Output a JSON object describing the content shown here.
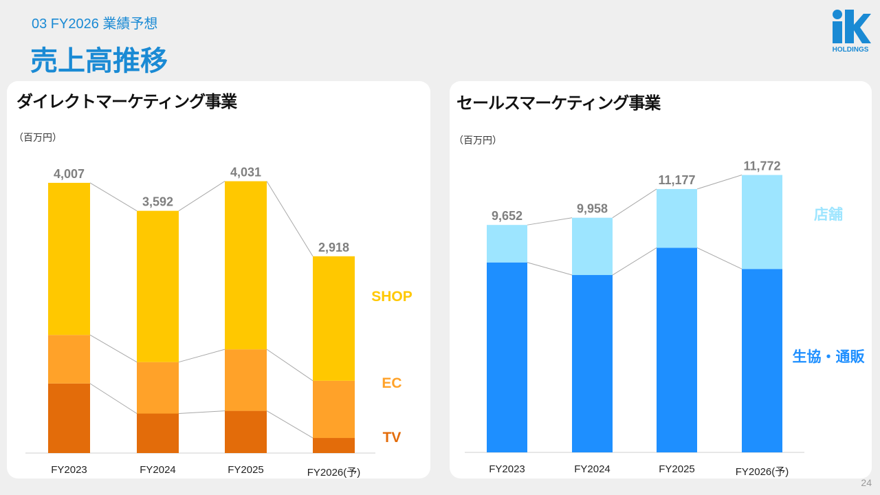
{
  "header": {
    "section": "03  FY2026 業績予想",
    "title": "売上高推移",
    "logo_text": "HOLDINGS"
  },
  "page_number": "24",
  "colors": {
    "accent": "#1a8ad4",
    "tv": "#e36c0a",
    "ec": "#ffa229",
    "shop": "#ffc800",
    "store": "#9de5ff",
    "coop": "#1e8fff"
  },
  "chart_data": [
    {
      "type": "bar",
      "stacked": true,
      "title": "ダイレクトマーケティング事業",
      "unit": "（百万円）",
      "categories": [
        "FY2023",
        "FY2024",
        "FY2025",
        "FY2026(予)"
      ],
      "series": [
        {
          "name": "TV",
          "values": [
            1031,
            586,
            626,
            224
          ]
        },
        {
          "name": "EC",
          "values": [
            720,
            763,
            912,
            848
          ]
        },
        {
          "name": "SHOP",
          "values": [
            2256,
            2243,
            2493,
            1846
          ]
        }
      ],
      "totals": [
        "4,007",
        "3,592",
        "4,031",
        "2,918"
      ],
      "ylim": [
        0,
        4200
      ],
      "legend_position": "right"
    },
    {
      "type": "bar",
      "stacked": true,
      "title": "セールスマーケティング事業",
      "unit": "（百万円）",
      "categories": [
        "FY2023",
        "FY2024",
        "FY2025",
        "FY2026(予)"
      ],
      "series": [
        {
          "name": "生協・通販",
          "values": [
            8061,
            7527,
            8683,
            7784
          ]
        },
        {
          "name": "店舗",
          "values": [
            1591,
            2431,
            2494,
            3988
          ]
        }
      ],
      "totals": [
        "9,652",
        "9,958",
        "11,177",
        "11,772"
      ],
      "ylim": [
        0,
        12400
      ],
      "legend_position": "right"
    }
  ]
}
